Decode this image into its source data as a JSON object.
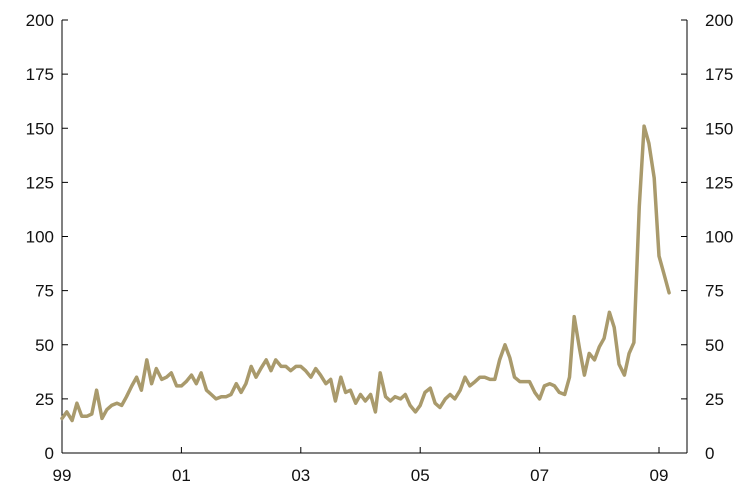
{
  "chart_data": {
    "type": "line",
    "title": "",
    "xlabel": "",
    "ylabel": "",
    "ylim": [
      0,
      200
    ],
    "y_ticks": [
      0,
      25,
      50,
      75,
      100,
      125,
      150,
      175,
      200
    ],
    "x_tick_labels": [
      "99",
      "01",
      "03",
      "05",
      "07",
      "09"
    ],
    "x_tick_years": [
      1999,
      2001,
      2003,
      2005,
      2007,
      2009
    ],
    "xlim": [
      1999.0,
      2009.5
    ],
    "grid": false,
    "legend": "none",
    "line_color": "#A99A6C",
    "series": [
      {
        "values": [
          {
            "x": 1999.0,
            "y": 16
          },
          {
            "x": 1999.08,
            "y": 19
          },
          {
            "x": 1999.17,
            "y": 15
          },
          {
            "x": 1999.25,
            "y": 23
          },
          {
            "x": 1999.33,
            "y": 17
          },
          {
            "x": 1999.42,
            "y": 17
          },
          {
            "x": 1999.5,
            "y": 18
          },
          {
            "x": 1999.58,
            "y": 29
          },
          {
            "x": 1999.67,
            "y": 16
          },
          {
            "x": 1999.75,
            "y": 20
          },
          {
            "x": 1999.83,
            "y": 22
          },
          {
            "x": 1999.92,
            "y": 23
          },
          {
            "x": 2000.0,
            "y": 22
          },
          {
            "x": 2000.08,
            "y": 26
          },
          {
            "x": 2000.17,
            "y": 31
          },
          {
            "x": 2000.25,
            "y": 35
          },
          {
            "x": 2000.33,
            "y": 29
          },
          {
            "x": 2000.42,
            "y": 43
          },
          {
            "x": 2000.5,
            "y": 32
          },
          {
            "x": 2000.58,
            "y": 39
          },
          {
            "x": 2000.67,
            "y": 34
          },
          {
            "x": 2000.75,
            "y": 35
          },
          {
            "x": 2000.83,
            "y": 37
          },
          {
            "x": 2000.92,
            "y": 31
          },
          {
            "x": 2001.0,
            "y": 31
          },
          {
            "x": 2001.08,
            "y": 33
          },
          {
            "x": 2001.17,
            "y": 36
          },
          {
            "x": 2001.25,
            "y": 32
          },
          {
            "x": 2001.33,
            "y": 37
          },
          {
            "x": 2001.42,
            "y": 29
          },
          {
            "x": 2001.5,
            "y": 27
          },
          {
            "x": 2001.58,
            "y": 25
          },
          {
            "x": 2001.67,
            "y": 26
          },
          {
            "x": 2001.75,
            "y": 26
          },
          {
            "x": 2001.83,
            "y": 27
          },
          {
            "x": 2001.92,
            "y": 32
          },
          {
            "x": 2002.0,
            "y": 28
          },
          {
            "x": 2002.08,
            "y": 32
          },
          {
            "x": 2002.17,
            "y": 40
          },
          {
            "x": 2002.25,
            "y": 35
          },
          {
            "x": 2002.33,
            "y": 39
          },
          {
            "x": 2002.42,
            "y": 43
          },
          {
            "x": 2002.5,
            "y": 38
          },
          {
            "x": 2002.58,
            "y": 43
          },
          {
            "x": 2002.67,
            "y": 40
          },
          {
            "x": 2002.75,
            "y": 40
          },
          {
            "x": 2002.83,
            "y": 38
          },
          {
            "x": 2002.92,
            "y": 40
          },
          {
            "x": 2003.0,
            "y": 40
          },
          {
            "x": 2003.08,
            "y": 38
          },
          {
            "x": 2003.17,
            "y": 35
          },
          {
            "x": 2003.25,
            "y": 39
          },
          {
            "x": 2003.33,
            "y": 36
          },
          {
            "x": 2003.42,
            "y": 32
          },
          {
            "x": 2003.5,
            "y": 34
          },
          {
            "x": 2003.58,
            "y": 24
          },
          {
            "x": 2003.67,
            "y": 35
          },
          {
            "x": 2003.75,
            "y": 28
          },
          {
            "x": 2003.83,
            "y": 29
          },
          {
            "x": 2003.92,
            "y": 23
          },
          {
            "x": 2004.0,
            "y": 27
          },
          {
            "x": 2004.08,
            "y": 24
          },
          {
            "x": 2004.17,
            "y": 27
          },
          {
            "x": 2004.25,
            "y": 19
          },
          {
            "x": 2004.33,
            "y": 37
          },
          {
            "x": 2004.42,
            "y": 26
          },
          {
            "x": 2004.5,
            "y": 24
          },
          {
            "x": 2004.58,
            "y": 26
          },
          {
            "x": 2004.67,
            "y": 25
          },
          {
            "x": 2004.75,
            "y": 27
          },
          {
            "x": 2004.83,
            "y": 22
          },
          {
            "x": 2004.92,
            "y": 19
          },
          {
            "x": 2005.0,
            "y": 22
          },
          {
            "x": 2005.08,
            "y": 28
          },
          {
            "x": 2005.17,
            "y": 30
          },
          {
            "x": 2005.25,
            "y": 23
          },
          {
            "x": 2005.33,
            "y": 21
          },
          {
            "x": 2005.42,
            "y": 25
          },
          {
            "x": 2005.5,
            "y": 27
          },
          {
            "x": 2005.58,
            "y": 25
          },
          {
            "x": 2005.67,
            "y": 29
          },
          {
            "x": 2005.75,
            "y": 35
          },
          {
            "x": 2005.83,
            "y": 31
          },
          {
            "x": 2005.92,
            "y": 33
          },
          {
            "x": 2006.0,
            "y": 35
          },
          {
            "x": 2006.08,
            "y": 35
          },
          {
            "x": 2006.17,
            "y": 34
          },
          {
            "x": 2006.25,
            "y": 34
          },
          {
            "x": 2006.33,
            "y": 43
          },
          {
            "x": 2006.42,
            "y": 50
          },
          {
            "x": 2006.5,
            "y": 44
          },
          {
            "x": 2006.58,
            "y": 35
          },
          {
            "x": 2006.67,
            "y": 33
          },
          {
            "x": 2006.75,
            "y": 33
          },
          {
            "x": 2006.83,
            "y": 33
          },
          {
            "x": 2006.92,
            "y": 28
          },
          {
            "x": 2007.0,
            "y": 25
          },
          {
            "x": 2007.08,
            "y": 31
          },
          {
            "x": 2007.17,
            "y": 32
          },
          {
            "x": 2007.25,
            "y": 31
          },
          {
            "x": 2007.33,
            "y": 28
          },
          {
            "x": 2007.42,
            "y": 27
          },
          {
            "x": 2007.5,
            "y": 35
          },
          {
            "x": 2007.58,
            "y": 63
          },
          {
            "x": 2007.67,
            "y": 48
          },
          {
            "x": 2007.75,
            "y": 36
          },
          {
            "x": 2007.83,
            "y": 46
          },
          {
            "x": 2007.92,
            "y": 43
          },
          {
            "x": 2008.0,
            "y": 49
          },
          {
            "x": 2008.08,
            "y": 53
          },
          {
            "x": 2008.17,
            "y": 65
          },
          {
            "x": 2008.25,
            "y": 58
          },
          {
            "x": 2008.33,
            "y": 41
          },
          {
            "x": 2008.42,
            "y": 36
          },
          {
            "x": 2008.5,
            "y": 46
          },
          {
            "x": 2008.58,
            "y": 51
          },
          {
            "x": 2008.67,
            "y": 114
          },
          {
            "x": 2008.75,
            "y": 151
          },
          {
            "x": 2008.83,
            "y": 143
          },
          {
            "x": 2008.92,
            "y": 127
          },
          {
            "x": 2009.0,
            "y": 91
          },
          {
            "x": 2009.08,
            "y": 83
          },
          {
            "x": 2009.17,
            "y": 74
          }
        ]
      }
    ]
  }
}
